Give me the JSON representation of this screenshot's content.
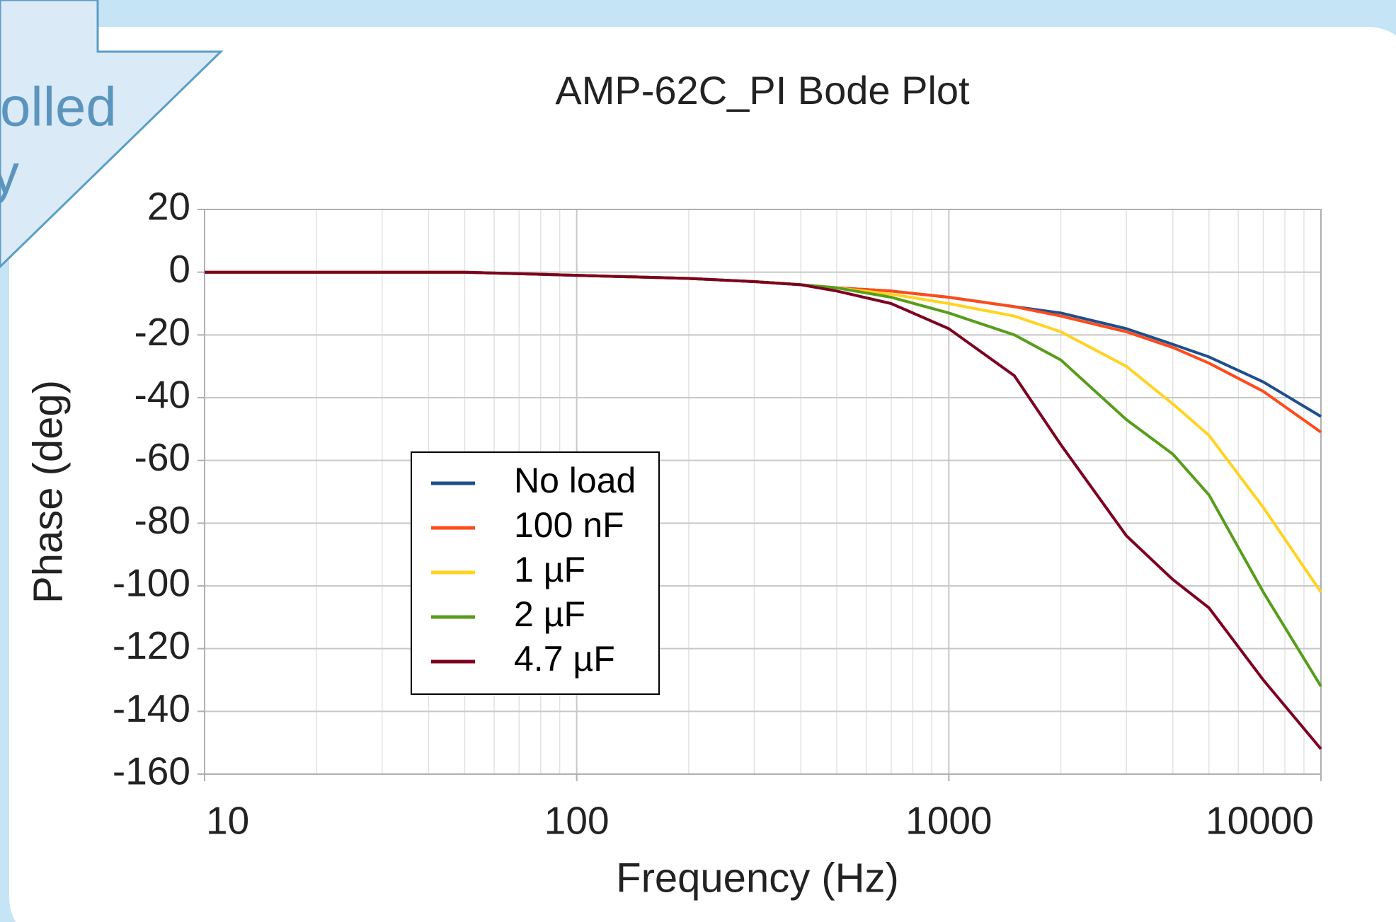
{
  "background_callout": [
    "olled",
    "y"
  ],
  "chart_data": {
    "type": "line",
    "title": "AMP-62C_PI Bode Plot",
    "x_label": "Frequency (Hz)",
    "y_label": "Phase (deg)",
    "x": [
      10,
      20,
      50,
      100,
      200,
      300,
      400,
      500,
      700,
      1000,
      1500,
      2000,
      3000,
      4000,
      5000,
      7000,
      10000
    ],
    "series": [
      {
        "name": "No load",
        "color": "#1f4e8c",
        "values": [
          0,
          0,
          0,
          -1,
          -2,
          -3,
          -4,
          -5,
          -6,
          -8,
          -11,
          -13,
          -18,
          -23,
          -27,
          -35,
          -46
        ]
      },
      {
        "name": "100 nF",
        "color": "#ff4a1a",
        "values": [
          0,
          0,
          0,
          -1,
          -2,
          -3,
          -4,
          -5,
          -6,
          -8,
          -11,
          -14,
          -19,
          -24,
          -29,
          -38,
          -51
        ]
      },
      {
        "name": "1 µF",
        "color": "#ffd320",
        "values": [
          0,
          0,
          0,
          -1,
          -2,
          -3,
          -4,
          -5,
          -7,
          -10,
          -14,
          -19,
          -30,
          -42,
          -52,
          -75,
          -102
        ]
      },
      {
        "name": "2 µF",
        "color": "#579d1c",
        "values": [
          0,
          0,
          0,
          -1,
          -2,
          -3,
          -4,
          -5,
          -8,
          -13,
          -20,
          -28,
          -47,
          -58,
          -71,
          -102,
          -132
        ]
      },
      {
        "name": "4.7 µF",
        "color": "#7e0021",
        "values": [
          0,
          0,
          0,
          -1,
          -2,
          -3,
          -4,
          -6,
          -10,
          -18,
          -33,
          -55,
          -84,
          -98,
          -107,
          -130,
          -152
        ]
      }
    ],
    "log_x": true,
    "xlim": [
      10,
      10000
    ],
    "xticks": [
      10,
      100,
      1000,
      10000
    ],
    "ylim": [
      -160,
      20
    ],
    "yticks": [
      20,
      0,
      -20,
      -40,
      -60,
      -80,
      -100,
      -120,
      -140,
      -160
    ],
    "grid": true,
    "minor_grid": true,
    "legend": "lower-left"
  }
}
